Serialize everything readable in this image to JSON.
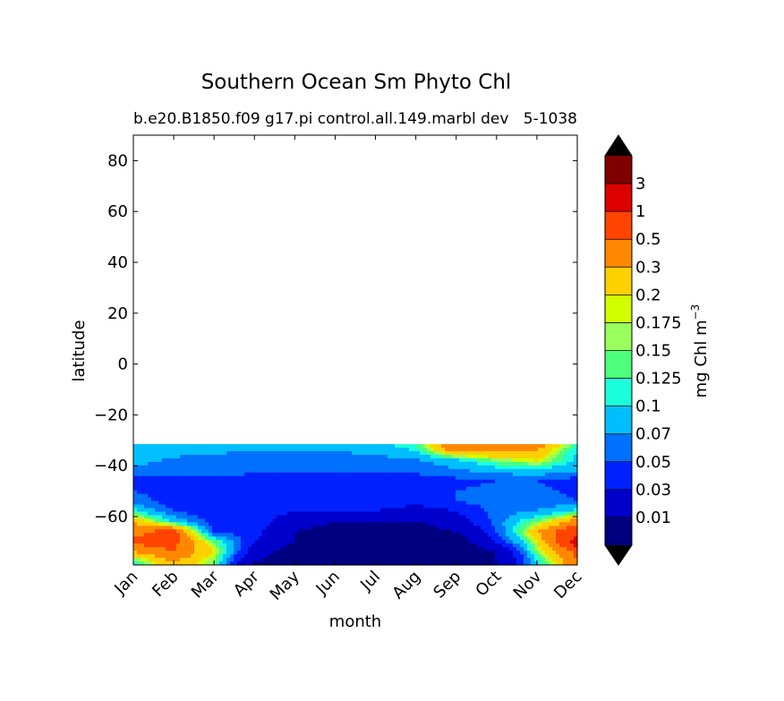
{
  "chart_data": {
    "type": "contourf",
    "title": "Southern Ocean Sm Phyto Chl",
    "subtitle_left": "b.e20.B1850.f09 g17.pi control.all.149.marbl dev",
    "subtitle_right": "5-1038",
    "xlabel": "month",
    "ylabel": "latitude",
    "x_categories": [
      "Jan",
      "Feb",
      "Mar",
      "Apr",
      "May",
      "Jun",
      "Jul",
      "Aug",
      "Sep",
      "Oct",
      "Nov",
      "Dec"
    ],
    "y_ticks": [
      80,
      60,
      40,
      20,
      0,
      -20,
      -40,
      -60
    ],
    "y_tick_labels": [
      "80",
      "60",
      "40",
      "20",
      "0",
      "−20",
      "−40",
      "−60"
    ],
    "ylim": [
      -79,
      90
    ],
    "data_lat_max": -31.5,
    "colorbar": {
      "label": "mg Chl m",
      "label_exponent": "−3",
      "levels": [
        "0.01",
        "0.03",
        "0.05",
        "0.07",
        "0.1",
        "0.125",
        "0.15",
        "0.175",
        "0.2",
        "0.3",
        "0.5",
        "1",
        "3"
      ],
      "colors": [
        "#000080",
        "#0000cd",
        "#0020ff",
        "#0070ff",
        "#00bfff",
        "#1cffdb",
        "#4cff7c",
        "#9aff5c",
        "#d2ff00",
        "#ffd000",
        "#ff8800",
        "#ff4400",
        "#dd0000",
        "#800000"
      ],
      "under_color": "#000000",
      "over_color": "#000000"
    },
    "field_lat": [
      -78,
      -74,
      -70,
      -66,
      -62,
      -58,
      -54,
      -50,
      -46,
      -42,
      -38,
      -34,
      -32
    ],
    "field_values": [
      [
        0.12,
        0.3,
        0.15,
        0.01,
        0.005,
        0.005,
        0.005,
        0.005,
        0.005,
        0.01,
        0.1,
        0.5
      ],
      [
        0.3,
        0.5,
        0.2,
        0.02,
        0.005,
        0.005,
        0.005,
        0.005,
        0.005,
        0.01,
        0.15,
        0.6
      ],
      [
        0.6,
        0.6,
        0.15,
        0.03,
        0.01,
        0.005,
        0.005,
        0.005,
        0.005,
        0.03,
        0.2,
        1.5
      ],
      [
        0.4,
        0.7,
        0.05,
        0.04,
        0.01,
        0.005,
        0.005,
        0.005,
        0.01,
        0.05,
        0.3,
        0.9
      ],
      [
        0.3,
        0.1,
        0.04,
        0.04,
        0.02,
        0.01,
        0.01,
        0.01,
        0.02,
        0.06,
        0.15,
        0.4
      ],
      [
        0.12,
        0.05,
        0.04,
        0.04,
        0.03,
        0.03,
        0.03,
        0.02,
        0.03,
        0.06,
        0.07,
        0.12
      ],
      [
        0.06,
        0.04,
        0.04,
        0.04,
        0.04,
        0.04,
        0.04,
        0.04,
        0.05,
        0.06,
        0.06,
        0.05
      ],
      [
        0.05,
        0.045,
        0.045,
        0.045,
        0.045,
        0.045,
        0.045,
        0.045,
        0.05,
        0.055,
        0.055,
        0.045
      ],
      [
        0.04,
        0.04,
        0.04,
        0.04,
        0.04,
        0.04,
        0.04,
        0.04,
        0.045,
        0.05,
        0.05,
        0.04
      ],
      [
        0.06,
        0.06,
        0.06,
        0.055,
        0.05,
        0.05,
        0.05,
        0.055,
        0.065,
        0.08,
        0.09,
        0.07
      ],
      [
        0.08,
        0.065,
        0.06,
        0.06,
        0.06,
        0.06,
        0.06,
        0.065,
        0.09,
        0.15,
        0.2,
        0.09
      ],
      [
        0.09,
        0.08,
        0.075,
        0.07,
        0.07,
        0.07,
        0.08,
        0.1,
        0.4,
        0.35,
        0.3,
        0.1
      ],
      [
        0.1,
        0.09,
        0.08,
        0.075,
        0.075,
        0.075,
        0.085,
        0.12,
        0.5,
        0.4,
        0.4,
        0.12
      ]
    ]
  }
}
